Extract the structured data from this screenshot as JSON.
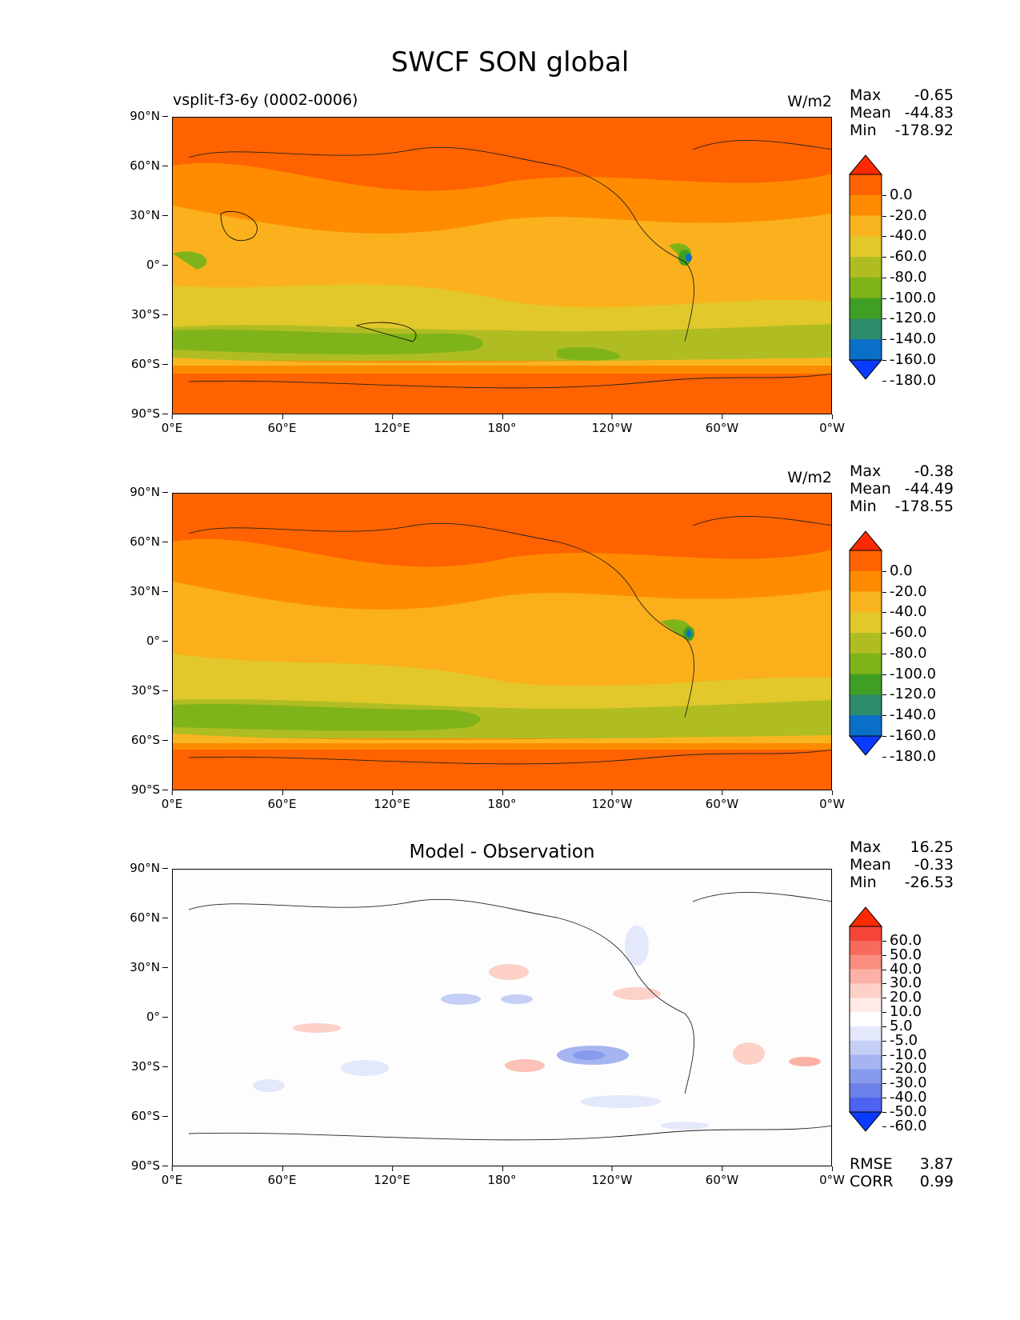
{
  "page": {
    "title": "SWCF SON global"
  },
  "axes": {
    "yticks": [
      "90°N",
      "60°N",
      "30°N",
      "0°",
      "30°S",
      "60°S",
      "90°S"
    ],
    "xticks": [
      "0°E",
      "60°E",
      "120°E",
      "180°",
      "120°W",
      "60°W",
      "0°W"
    ]
  },
  "panels": [
    {
      "left_title": "vsplit-f3-6y (0002-0006)",
      "center_title": "",
      "units": "W/m2",
      "stats": [
        {
          "label": "Max",
          "value": "-0.65"
        },
        {
          "label": "Mean",
          "value": "-44.83"
        },
        {
          "label": "Min",
          "value": "-178.92"
        }
      ],
      "colorbar": {
        "labels": [
          "0.0",
          "-20.0",
          "-40.0",
          "-60.0",
          "-80.0",
          "-100.0",
          "-120.0",
          "-140.0",
          "-160.0",
          "-180.0"
        ],
        "colors": [
          "#ff2a00",
          "#ff6200",
          "#ff8c00",
          "#f9b520",
          "#e2c82a",
          "#b0bd22",
          "#7fb31a",
          "#3f9f25",
          "#2d8a6b",
          "#0a6fc7",
          "#0a3cff"
        ]
      },
      "footer": []
    },
    {
      "left_title": "",
      "center_title": "",
      "units": "W/m2",
      "stats": [
        {
          "label": "Max",
          "value": "-0.38"
        },
        {
          "label": "Mean",
          "value": "-44.49"
        },
        {
          "label": "Min",
          "value": "-178.55"
        }
      ],
      "colorbar": {
        "labels": [
          "0.0",
          "-20.0",
          "-40.0",
          "-60.0",
          "-80.0",
          "-100.0",
          "-120.0",
          "-140.0",
          "-160.0",
          "-180.0"
        ],
        "colors": [
          "#ff2a00",
          "#ff6200",
          "#ff8c00",
          "#f9b520",
          "#e2c82a",
          "#b0bd22",
          "#7fb31a",
          "#3f9f25",
          "#2d8a6b",
          "#0a6fc7",
          "#0a3cff"
        ]
      },
      "footer": []
    },
    {
      "left_title": "",
      "center_title": "Model - Observation",
      "units": "",
      "stats": [
        {
          "label": "Max",
          "value": "16.25"
        },
        {
          "label": "Mean",
          "value": "-0.33"
        },
        {
          "label": "Min",
          "value": "-26.53"
        }
      ],
      "colorbar": {
        "labels": [
          "60.0",
          "50.0",
          "40.0",
          "30.0",
          "20.0",
          "10.0",
          "5.0",
          "-5.0",
          "-10.0",
          "-20.0",
          "-30.0",
          "-40.0",
          "-50.0",
          "-60.0"
        ],
        "colors": [
          "#ff2a00",
          "#f5453a",
          "#f76a5d",
          "#f98e80",
          "#fbb1a5",
          "#fdd0c8",
          "#feeae6",
          "#ffffff",
          "#e3e8fb",
          "#c5cff6",
          "#a6b4f1",
          "#889aec",
          "#6b80e8",
          "#4c62f0",
          "#0a3cff"
        ]
      },
      "footer": [
        {
          "label": "RMSE",
          "value": "3.87"
        },
        {
          "label": "CORR",
          "value": "0.99"
        }
      ]
    }
  ]
}
